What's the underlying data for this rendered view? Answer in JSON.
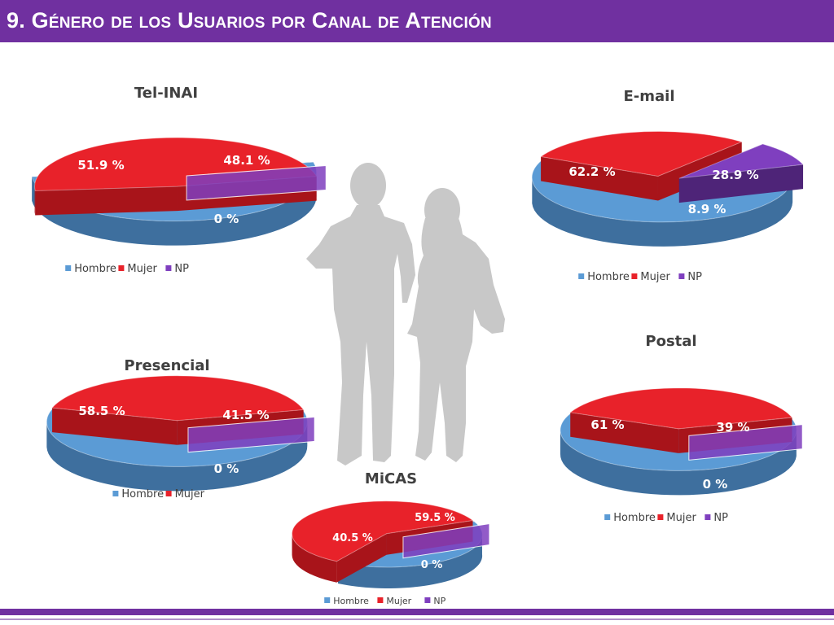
{
  "header": {
    "title": "9. Género de los Usuarios por Canal de Atención"
  },
  "colors": {
    "header_bg": "#7030a0",
    "hombre": "#5b9bd5",
    "mujer": "#e8222a",
    "np": "#7f3fbf",
    "silhouette": "#c8c8c8"
  },
  "chart_data": [
    {
      "type": "pie",
      "title": "Tel-INAI",
      "categories": [
        "Hombre",
        "Mujer",
        "NP"
      ],
      "values": [
        51.9,
        48.1,
        0
      ],
      "labels": [
        "51.9 %",
        "48.1 %",
        "0 %"
      ],
      "legend": [
        "Hombre",
        "Mujer",
        "NP"
      ],
      "legend_position": "bottom"
    },
    {
      "type": "pie",
      "title": "E-mail",
      "categories": [
        "Hombre",
        "Mujer",
        "NP"
      ],
      "values": [
        62.2,
        28.9,
        8.9
      ],
      "labels": [
        "62.2 %",
        "28.9 %",
        "8.9 %"
      ],
      "legend": [
        "Hombre",
        "Mujer",
        "NP"
      ],
      "legend_position": "bottom"
    },
    {
      "type": "pie",
      "title": "Presencial",
      "categories": [
        "Hombre",
        "Mujer",
        "NP"
      ],
      "values": [
        58.5,
        41.5,
        0
      ],
      "labels": [
        "58.5 %",
        "41.5 %",
        "0 %"
      ],
      "legend": [
        "Hombre",
        "Mujer"
      ],
      "legend_position": "bottom"
    },
    {
      "type": "pie",
      "title": "Postal",
      "categories": [
        "Hombre",
        "Mujer",
        "NP"
      ],
      "values": [
        61,
        39,
        0
      ],
      "labels": [
        "61 %",
        "39 %",
        "0 %"
      ],
      "legend": [
        "Hombre",
        "Mujer",
        "NP"
      ],
      "legend_position": "bottom"
    },
    {
      "type": "pie",
      "title": "MiCAS",
      "categories": [
        "Hombre",
        "Mujer",
        "NP"
      ],
      "values": [
        40.5,
        59.5,
        0
      ],
      "labels": [
        "40.5 %",
        "59.5 %",
        "0 %"
      ],
      "legend": [
        "Hombre",
        "Mujer",
        "NP"
      ],
      "legend_position": "bottom"
    }
  ]
}
